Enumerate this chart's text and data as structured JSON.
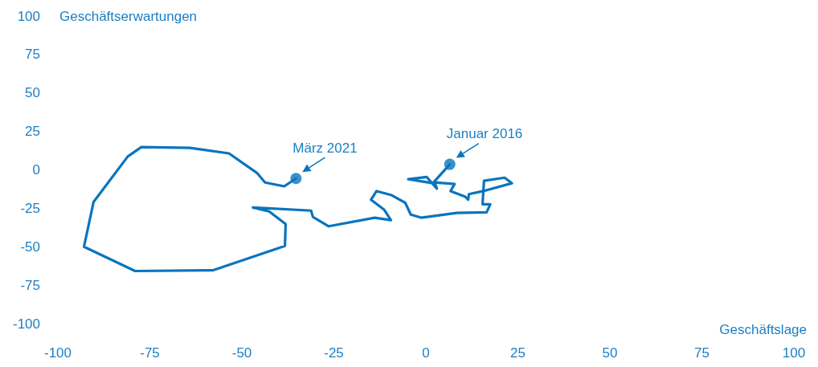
{
  "chart_data": {
    "type": "line",
    "xlabel": "Geschäftslage",
    "ylabel": "Geschäftserwartungen",
    "xlim": [
      -100,
      100
    ],
    "xticks": [
      -100,
      -75,
      -50,
      -25,
      0,
      25,
      50,
      75,
      100
    ],
    "ylim": [
      -100,
      100
    ],
    "yticks": [
      -100,
      -75,
      -50,
      -25,
      0,
      25,
      50,
      75,
      100
    ],
    "grid": false,
    "marker": "none",
    "line_style": "solid",
    "series": [
      {
        "color": "#0a74bf",
        "x": [
          6.5,
          1.9,
          -4.8,
          0.2,
          3.0,
          2.4,
          7.8,
          6.7,
          10.6,
          11.5,
          11.7,
          15.6,
          23.4,
          21.4,
          15.8,
          15.4,
          17.5,
          16.5,
          8.4,
          -1.3,
          -4.1,
          -5.6,
          -9.5,
          -13.4,
          -14.9,
          -11.3,
          -9.5,
          -13.9,
          -26.4,
          -30.7,
          -31.2,
          -47,
          -42.6,
          -38.1,
          -38.3,
          -57.8,
          -79,
          -92.9,
          -90.3,
          -81,
          -77.3,
          -64.1,
          -53.5,
          -45.9,
          -43.7,
          -38.5,
          -35.3
        ],
        "values": [
          3.6,
          -8.7,
          -6.1,
          -4.6,
          -12.2,
          -8.2,
          -9.2,
          -13.8,
          -17.3,
          -19.4,
          -15.8,
          -13.8,
          -8.7,
          -5.1,
          -7.1,
          -22.4,
          -22.4,
          -27.6,
          -28,
          -31.1,
          -29.1,
          -21.4,
          -16.3,
          -13.8,
          -19.4,
          -26,
          -32.7,
          -31.1,
          -36.7,
          -30.6,
          -26.5,
          -24.5,
          -27,
          -35.2,
          -49.5,
          -65.3,
          -65.8,
          -50,
          -20.9,
          8.7,
          14.8,
          14.3,
          10.7,
          -2,
          -8.2,
          -10.7,
          -5.6
        ]
      }
    ],
    "annotations": [
      {
        "text": "März 2021",
        "x": -35.3,
        "y": -5.6
      },
      {
        "text": "Januar 2016",
        "x": 6.5,
        "y": 3.6
      }
    ]
  }
}
